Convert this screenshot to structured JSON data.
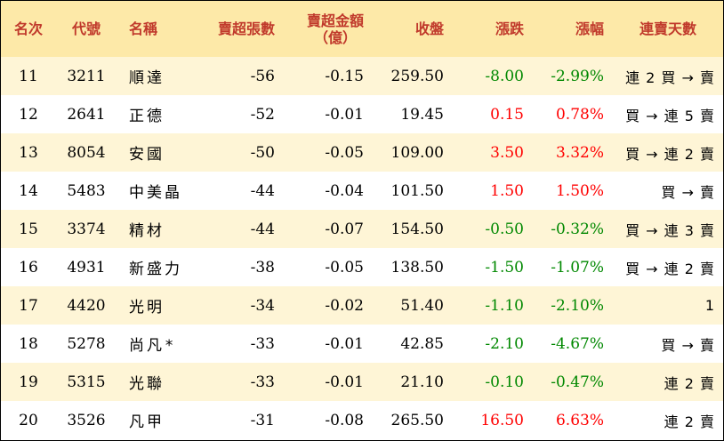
{
  "colors": {
    "header_bg": "#fde9a8",
    "header_text": "#c0392b",
    "row_alt_bg": "#fef5d6",
    "up": "#ff0000",
    "down": "#008800"
  },
  "header": {
    "rank": "名次",
    "code": "代號",
    "name": "名稱",
    "sell_lots": "賣超張數",
    "sell_amount_line1": "賣超金額",
    "sell_amount_line2": "（億）",
    "close": "收盤",
    "change": "漲跌",
    "change_pct": "漲幅",
    "streak": "連賣天數"
  },
  "rows": [
    {
      "rank": "11",
      "code": "3211",
      "name": "順達",
      "lots": "-56",
      "amount": "-0.15",
      "close": "259.50",
      "change": "-8.00",
      "pct": "-2.99%",
      "streak": "連 2 買 → 賣",
      "dir": "down"
    },
    {
      "rank": "12",
      "code": "2641",
      "name": "正德",
      "lots": "-52",
      "amount": "-0.01",
      "close": "19.45",
      "change": "0.15",
      "pct": "0.78%",
      "streak": "買 → 連 5 賣",
      "dir": "up"
    },
    {
      "rank": "13",
      "code": "8054",
      "name": "安國",
      "lots": "-50",
      "amount": "-0.05",
      "close": "109.00",
      "change": "3.50",
      "pct": "3.32%",
      "streak": "買 → 連 2 賣",
      "dir": "up"
    },
    {
      "rank": "14",
      "code": "5483",
      "name": "中美晶",
      "lots": "-44",
      "amount": "-0.04",
      "close": "101.50",
      "change": "1.50",
      "pct": "1.50%",
      "streak": "買 → 賣",
      "dir": "up"
    },
    {
      "rank": "15",
      "code": "3374",
      "name": "精材",
      "lots": "-44",
      "amount": "-0.07",
      "close": "154.50",
      "change": "-0.50",
      "pct": "-0.32%",
      "streak": "買 → 連 3 賣",
      "dir": "down"
    },
    {
      "rank": "16",
      "code": "4931",
      "name": "新盛力",
      "lots": "-38",
      "amount": "-0.05",
      "close": "138.50",
      "change": "-1.50",
      "pct": "-1.07%",
      "streak": "買 → 連 2 賣",
      "dir": "down"
    },
    {
      "rank": "17",
      "code": "4420",
      "name": "光明",
      "lots": "-34",
      "amount": "-0.02",
      "close": "51.40",
      "change": "-1.10",
      "pct": "-2.10%",
      "streak": "1",
      "dir": "down"
    },
    {
      "rank": "18",
      "code": "5278",
      "name": "尚凡*",
      "lots": "-33",
      "amount": "-0.01",
      "close": "42.85",
      "change": "-2.10",
      "pct": "-4.67%",
      "streak": "買 → 賣",
      "dir": "down"
    },
    {
      "rank": "19",
      "code": "5315",
      "name": "光聯",
      "lots": "-33",
      "amount": "-0.01",
      "close": "21.10",
      "change": "-0.10",
      "pct": "-0.47%",
      "streak": "連 2 賣",
      "dir": "down"
    },
    {
      "rank": "20",
      "code": "3526",
      "name": "凡甲",
      "lots": "-31",
      "amount": "-0.08",
      "close": "265.50",
      "change": "16.50",
      "pct": "6.63%",
      "streak": "連 2 賣",
      "dir": "up"
    }
  ]
}
